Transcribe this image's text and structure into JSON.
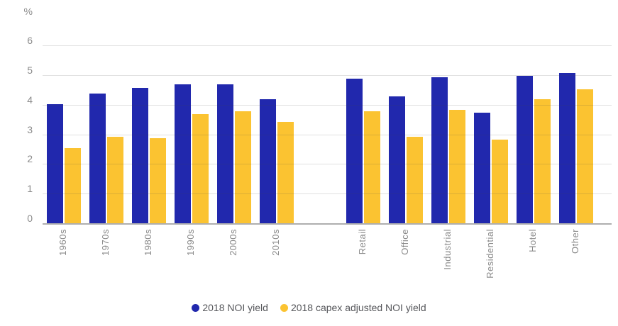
{
  "chart_data": {
    "type": "bar",
    "title": "",
    "unit": "%",
    "ylim": [
      0,
      6
    ],
    "yticks": [
      0,
      1,
      2,
      3,
      4,
      5,
      6
    ],
    "grid": true,
    "gridlines_over_bars": true,
    "x_tick_rotation": -90,
    "legend_position": "bottom-center",
    "series_meta": [
      {
        "name": "2018 NOI yield",
        "color": "#2128AD"
      },
      {
        "name": "2018 capex adjusted NOI yield",
        "color": "#FBC331"
      }
    ],
    "groups": [
      {
        "name": "build-decade",
        "categories": [
          "1960s",
          "1970s",
          "1980s",
          "1990s",
          "2000s",
          "2010s"
        ],
        "series": [
          {
            "name": "2018 NOI yield",
            "values": [
              4.05,
              4.4,
              4.6,
              4.7,
              4.7,
              4.2
            ]
          },
          {
            "name": "2018 capex adjusted NOI yield",
            "values": [
              2.55,
              2.95,
              2.9,
              3.7,
              3.8,
              3.45
            ]
          }
        ]
      },
      {
        "name": "property-type",
        "categories": [
          "Retail",
          "Office",
          "Industrial",
          "Residential",
          "Hotel",
          "Other"
        ],
        "series": [
          {
            "name": "2018 NOI yield",
            "values": [
              4.9,
              4.3,
              4.95,
              3.75,
              5.0,
              5.1
            ]
          },
          {
            "name": "2018 capex adjusted NOI yield",
            "values": [
              3.8,
              2.95,
              3.85,
              2.85,
              4.2,
              4.55
            ]
          }
        ]
      }
    ]
  }
}
